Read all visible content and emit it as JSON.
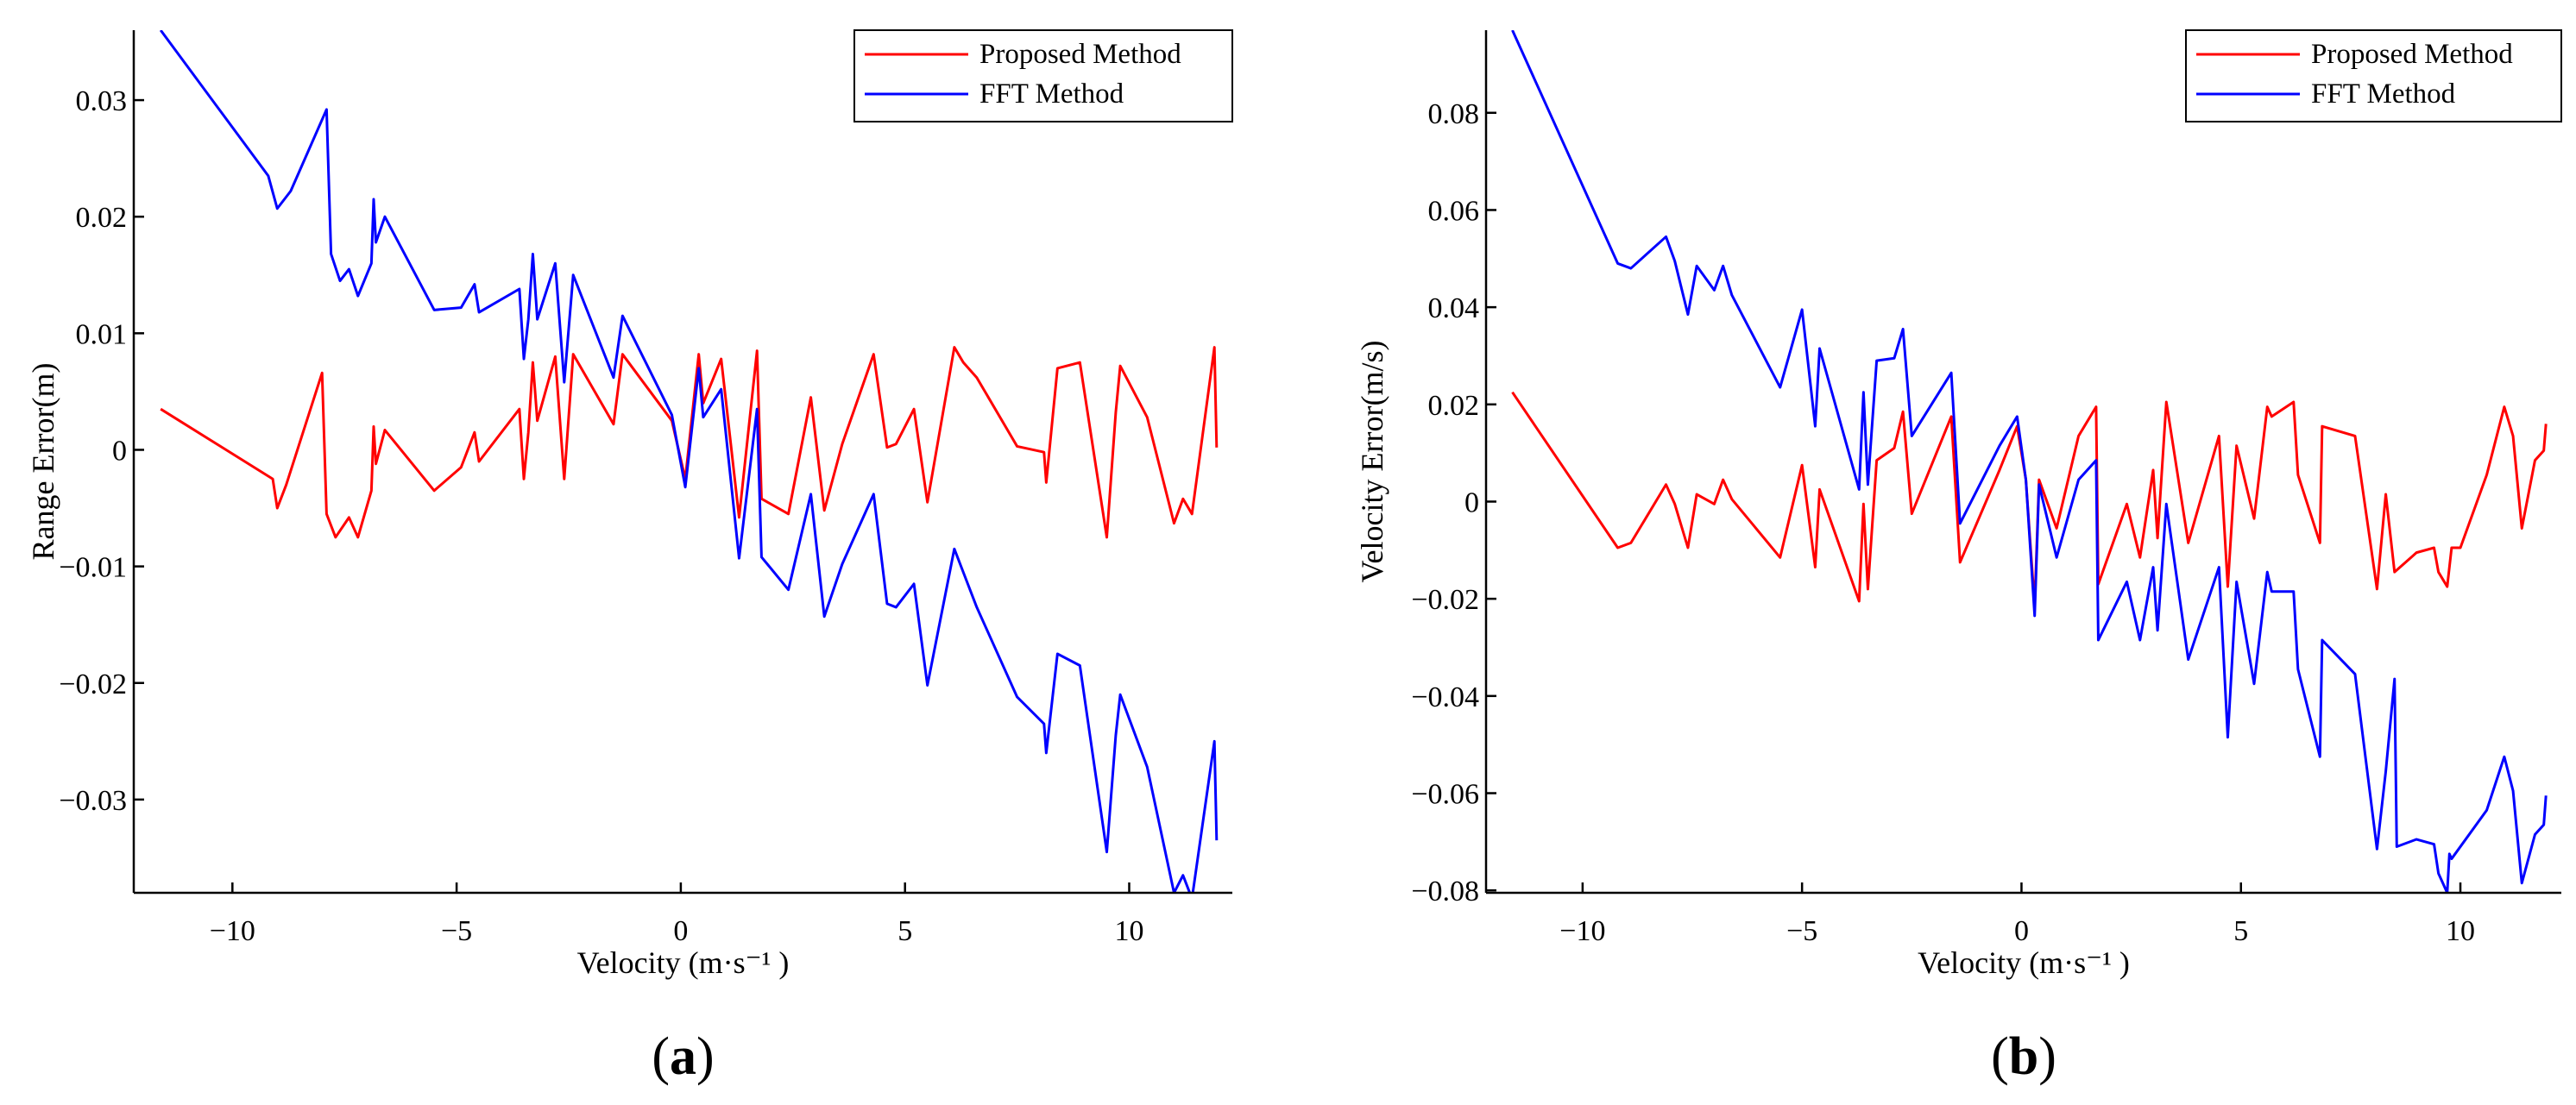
{
  "chart_data": [
    {
      "type": "line",
      "panel_label": "a",
      "title": "",
      "xlabel": "Velocity (m·s⁻¹ )",
      "ylabel": "Range Error(m)",
      "xlim": [
        -12.2,
        12.3
      ],
      "ylim": [
        -0.038,
        0.036
      ],
      "xticks": [
        -10,
        -5,
        0,
        5,
        10
      ],
      "xtick_labels": [
        "−10",
        "−5",
        "0",
        "5",
        "10"
      ],
      "yticks": [
        0.03,
        0.02,
        0.01,
        0,
        -0.01,
        -0.02,
        -0.03
      ],
      "ytick_labels": [
        "0.03",
        "0.02",
        "0.01",
        "0",
        "−0.01",
        "−0.02",
        "−0.03"
      ],
      "grid": false,
      "legend_position": "top-right",
      "series": [
        {
          "name": "Proposed Method",
          "color": "#ff0000",
          "points": [
            [
              -11.6,
              0.0035
            ],
            [
              -9.1,
              -0.0025
            ],
            [
              -9.0,
              -0.005
            ],
            [
              -8.8,
              -0.003
            ],
            [
              -8.0,
              0.0066
            ],
            [
              -7.9,
              -0.0055
            ],
            [
              -7.7,
              -0.0075
            ],
            [
              -7.4,
              -0.0058
            ],
            [
              -7.2,
              -0.0075
            ],
            [
              -6.9,
              -0.0035
            ],
            [
              -6.85,
              0.002
            ],
            [
              -6.8,
              -0.0012
            ],
            [
              -6.6,
              0.0017
            ],
            [
              -5.5,
              -0.0035
            ],
            [
              -4.9,
              -0.0015
            ],
            [
              -4.6,
              0.0015
            ],
            [
              -4.5,
              -0.001
            ],
            [
              -3.6,
              0.0035
            ],
            [
              -3.5,
              -0.0025
            ],
            [
              -3.4,
              0.0015
            ],
            [
              -3.3,
              0.0075
            ],
            [
              -3.2,
              0.0025
            ],
            [
              -2.8,
              0.008
            ],
            [
              -2.6,
              -0.0025
            ],
            [
              -2.4,
              0.0082
            ],
            [
              -1.5,
              0.0022
            ],
            [
              -1.3,
              0.0082
            ],
            [
              -0.2,
              0.0025
            ],
            [
              0.1,
              -0.0025
            ],
            [
              0.4,
              0.0082
            ],
            [
              0.5,
              0.004
            ],
            [
              0.9,
              0.0078
            ],
            [
              1.3,
              -0.0058
            ],
            [
              1.7,
              0.0085
            ],
            [
              1.8,
              -0.0042
            ],
            [
              2.4,
              -0.0055
            ],
            [
              2.9,
              0.0045
            ],
            [
              3.2,
              -0.0052
            ],
            [
              3.6,
              0.0005
            ],
            [
              4.3,
              0.0082
            ],
            [
              4.6,
              0.0002
            ],
            [
              4.8,
              0.0005
            ],
            [
              5.2,
              0.0035
            ],
            [
              5.5,
              -0.0045
            ],
            [
              6.1,
              0.0088
            ],
            [
              6.3,
              0.0075
            ],
            [
              6.6,
              0.0062
            ],
            [
              7.5,
              0.0003
            ],
            [
              8.1,
              -0.0002
            ],
            [
              8.15,
              -0.0028
            ],
            [
              8.4,
              0.007
            ],
            [
              8.9,
              0.0075
            ],
            [
              9.5,
              -0.0075
            ],
            [
              9.7,
              0.0032
            ],
            [
              9.8,
              0.0072
            ],
            [
              10.4,
              0.0028
            ],
            [
              11.0,
              -0.0063
            ],
            [
              11.2,
              -0.0042
            ],
            [
              11.4,
              -0.0055
            ],
            [
              11.9,
              0.0088
            ],
            [
              11.95,
              0.0002
            ]
          ]
        },
        {
          "name": "FFT Method",
          "color": "#0000ff",
          "points": [
            [
              -11.6,
              0.036
            ],
            [
              -9.2,
              0.0235
            ],
            [
              -9.0,
              0.0207
            ],
            [
              -8.7,
              0.0222
            ],
            [
              -7.9,
              0.0292
            ],
            [
              -7.8,
              0.0168
            ],
            [
              -7.6,
              0.0145
            ],
            [
              -7.4,
              0.0155
            ],
            [
              -7.2,
              0.0132
            ],
            [
              -6.9,
              0.016
            ],
            [
              -6.85,
              0.0215
            ],
            [
              -6.8,
              0.0178
            ],
            [
              -6.6,
              0.02
            ],
            [
              -5.5,
              0.012
            ],
            [
              -4.9,
              0.0122
            ],
            [
              -4.6,
              0.0142
            ],
            [
              -4.5,
              0.0118
            ],
            [
              -3.6,
              0.0138
            ],
            [
              -3.5,
              0.0078
            ],
            [
              -3.4,
              0.0112
            ],
            [
              -3.3,
              0.0168
            ],
            [
              -3.2,
              0.0112
            ],
            [
              -2.8,
              0.016
            ],
            [
              -2.6,
              0.0058
            ],
            [
              -2.4,
              0.015
            ],
            [
              -1.5,
              0.0062
            ],
            [
              -1.3,
              0.0115
            ],
            [
              -0.2,
              0.003
            ],
            [
              0.1,
              -0.0032
            ],
            [
              0.4,
              0.007
            ],
            [
              0.5,
              0.0028
            ],
            [
              0.9,
              0.0052
            ],
            [
              1.3,
              -0.0093
            ],
            [
              1.7,
              0.0035
            ],
            [
              1.8,
              -0.0092
            ],
            [
              2.4,
              -0.012
            ],
            [
              2.9,
              -0.0038
            ],
            [
              3.2,
              -0.0143
            ],
            [
              3.6,
              -0.0098
            ],
            [
              4.3,
              -0.0038
            ],
            [
              4.6,
              -0.0132
            ],
            [
              4.8,
              -0.0135
            ],
            [
              5.2,
              -0.0115
            ],
            [
              5.5,
              -0.0202
            ],
            [
              6.1,
              -0.0085
            ],
            [
              6.3,
              -0.0105
            ],
            [
              6.6,
              -0.0135
            ],
            [
              7.5,
              -0.0212
            ],
            [
              8.1,
              -0.0235
            ],
            [
              8.15,
              -0.026
            ],
            [
              8.4,
              -0.0175
            ],
            [
              8.9,
              -0.0185
            ],
            [
              9.5,
              -0.0345
            ],
            [
              9.7,
              -0.0245
            ],
            [
              9.8,
              -0.021
            ],
            [
              10.4,
              -0.0272
            ],
            [
              11.0,
              -0.038
            ],
            [
              11.2,
              -0.0365
            ],
            [
              11.4,
              -0.0385
            ],
            [
              11.9,
              -0.025
            ],
            [
              11.95,
              -0.0335
            ]
          ]
        }
      ]
    },
    {
      "type": "line",
      "panel_label": "b",
      "title": "",
      "xlabel": "Velocity (m·s⁻¹ )",
      "ylabel": "Velocity Error(m/s)",
      "xlim": [
        -12.2,
        12.3
      ],
      "ylim": [
        -0.0805,
        0.097
      ],
      "xticks": [
        -10,
        -5,
        0,
        5,
        10
      ],
      "xtick_labels": [
        "−10",
        "−5",
        "0",
        "5",
        "10"
      ],
      "yticks": [
        0.08,
        0.06,
        0.04,
        0.02,
        0,
        -0.02,
        -0.04,
        -0.06,
        -0.08
      ],
      "ytick_labels": [
        "0.08",
        "0.06",
        "0.04",
        "0.02",
        "0",
        "−0.02",
        "−0.04",
        "−0.06",
        "−0.08"
      ],
      "grid": false,
      "legend_position": "top-right",
      "series": [
        {
          "name": "Proposed Method",
          "color": "#ff0000",
          "points": [
            [
              -11.6,
              0.0225
            ],
            [
              -9.2,
              -0.0095
            ],
            [
              -8.9,
              -0.0085
            ],
            [
              -8.1,
              0.0035
            ],
            [
              -7.9,
              -0.0005
            ],
            [
              -7.6,
              -0.0095
            ],
            [
              -7.4,
              0.0015
            ],
            [
              -7.0,
              -0.0005
            ],
            [
              -6.8,
              0.0045
            ],
            [
              -6.6,
              0.0005
            ],
            [
              -5.5,
              -0.0115
            ],
            [
              -5.0,
              0.0075
            ],
            [
              -4.7,
              -0.0135
            ],
            [
              -4.6,
              0.0025
            ],
            [
              -3.7,
              -0.0205
            ],
            [
              -3.6,
              -0.0005
            ],
            [
              -3.5,
              -0.018
            ],
            [
              -3.3,
              0.0085
            ],
            [
              -2.9,
              0.011
            ],
            [
              -2.7,
              0.0185
            ],
            [
              -2.5,
              -0.0025
            ],
            [
              -1.6,
              0.0175
            ],
            [
              -1.4,
              -0.0125
            ],
            [
              -0.5,
              0.0065
            ],
            [
              -0.1,
              0.0155
            ],
            [
              0.1,
              0.0045
            ],
            [
              0.3,
              -0.0215
            ],
            [
              0.4,
              0.0045
            ],
            [
              0.8,
              -0.0055
            ],
            [
              1.3,
              0.0135
            ],
            [
              1.7,
              0.0195
            ],
            [
              1.75,
              -0.017
            ],
            [
              2.4,
              -0.0005
            ],
            [
              2.7,
              -0.0115
            ],
            [
              3.0,
              0.0065
            ],
            [
              3.1,
              -0.0075
            ],
            [
              3.3,
              0.0205
            ],
            [
              3.8,
              -0.0085
            ],
            [
              4.5,
              0.0135
            ],
            [
              4.7,
              -0.0175
            ],
            [
              4.9,
              0.0115
            ],
            [
              5.3,
              -0.0035
            ],
            [
              5.6,
              0.0195
            ],
            [
              5.7,
              0.0175
            ],
            [
              6.2,
              0.0205
            ],
            [
              6.3,
              0.0055
            ],
            [
              6.8,
              -0.0085
            ],
            [
              6.85,
              0.0155
            ],
            [
              7.6,
              0.0135
            ],
            [
              8.1,
              -0.018
            ],
            [
              8.3,
              0.0015
            ],
            [
              8.5,
              -0.0145
            ],
            [
              9.0,
              -0.0105
            ],
            [
              9.4,
              -0.0095
            ],
            [
              9.5,
              -0.0145
            ],
            [
              9.7,
              -0.0175
            ],
            [
              9.8,
              -0.0095
            ],
            [
              10.0,
              -0.0095
            ],
            [
              10.6,
              0.0055
            ],
            [
              11.0,
              0.0195
            ],
            [
              11.2,
              0.0135
            ],
            [
              11.4,
              -0.0055
            ],
            [
              11.7,
              0.0085
            ],
            [
              11.9,
              0.0105
            ],
            [
              11.95,
              0.016
            ]
          ]
        },
        {
          "name": "FFT Method",
          "color": "#0000ff",
          "points": [
            [
              -11.6,
              0.097
            ],
            [
              -9.2,
              0.049
            ],
            [
              -8.9,
              0.048
            ],
            [
              -8.1,
              0.0545
            ],
            [
              -7.9,
              0.0495
            ],
            [
              -7.6,
              0.0385
            ],
            [
              -7.4,
              0.0485
            ],
            [
              -7.0,
              0.0435
            ],
            [
              -6.8,
              0.0485
            ],
            [
              -6.6,
              0.0425
            ],
            [
              -5.5,
              0.0235
            ],
            [
              -5.0,
              0.0395
            ],
            [
              -4.7,
              0.0155
            ],
            [
              -4.6,
              0.0315
            ],
            [
              -3.7,
              0.0025
            ],
            [
              -3.6,
              0.0225
            ],
            [
              -3.5,
              0.0035
            ],
            [
              -3.3,
              0.029
            ],
            [
              -2.9,
              0.0295
            ],
            [
              -2.7,
              0.0355
            ],
            [
              -2.5,
              0.0135
            ],
            [
              -1.6,
              0.0265
            ],
            [
              -1.4,
              -0.0045
            ],
            [
              -0.5,
              0.0115
            ],
            [
              -0.1,
              0.0175
            ],
            [
              0.1,
              0.0045
            ],
            [
              0.3,
              -0.0235
            ],
            [
              0.4,
              0.0035
            ],
            [
              0.8,
              -0.0115
            ],
            [
              1.3,
              0.0045
            ],
            [
              1.7,
              0.0085
            ],
            [
              1.75,
              -0.0285
            ],
            [
              2.4,
              -0.0165
            ],
            [
              2.7,
              -0.0285
            ],
            [
              3.0,
              -0.0135
            ],
            [
              3.1,
              -0.0265
            ],
            [
              3.3,
              -0.0005
            ],
            [
              3.8,
              -0.0325
            ],
            [
              4.5,
              -0.0135
            ],
            [
              4.7,
              -0.0485
            ],
            [
              4.9,
              -0.0165
            ],
            [
              5.3,
              -0.0375
            ],
            [
              5.6,
              -0.0145
            ],
            [
              5.7,
              -0.0185
            ],
            [
              6.2,
              -0.0185
            ],
            [
              6.3,
              -0.0345
            ],
            [
              6.8,
              -0.0525
            ],
            [
              6.85,
              -0.0285
            ],
            [
              7.6,
              -0.0355
            ],
            [
              8.1,
              -0.0715
            ],
            [
              8.3,
              -0.0555
            ],
            [
              8.5,
              -0.0365
            ],
            [
              8.55,
              -0.071
            ],
            [
              9.0,
              -0.0695
            ],
            [
              9.4,
              -0.0705
            ],
            [
              9.5,
              -0.0765
            ],
            [
              9.7,
              -0.0805
            ],
            [
              9.75,
              -0.0725
            ],
            [
              9.8,
              -0.0735
            ],
            [
              10.6,
              -0.0635
            ],
            [
              11.0,
              -0.0525
            ],
            [
              11.2,
              -0.0595
            ],
            [
              11.4,
              -0.0785
            ],
            [
              11.7,
              -0.0685
            ],
            [
              11.9,
              -0.0665
            ],
            [
              11.95,
              -0.0605
            ]
          ]
        }
      ]
    }
  ]
}
